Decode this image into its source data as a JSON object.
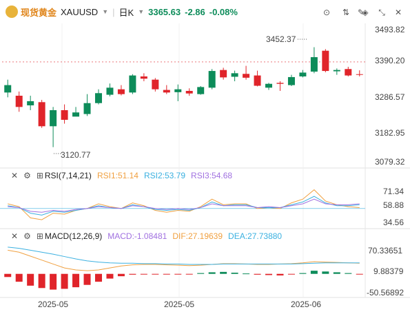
{
  "header": {
    "symbol_cn": "现货黄金",
    "symbol": "XAUUSD",
    "period": "日K",
    "price": "3365.63",
    "change": "-2.86",
    "change_pct": "-0.08%",
    "colors": {
      "up": "#0d8c5a",
      "down": "#e0242a",
      "text": "#222222"
    }
  },
  "toolbar_icons": [
    "compare-icon",
    "sort-icon",
    "draw-icon",
    "fill-icon",
    "collapse-icon",
    "close-icon"
  ],
  "price_axis": {
    "labels": [
      "3493.82",
      "3390.20",
      "3286.57",
      "3182.95",
      "3079.32"
    ],
    "current_label": "3390.20"
  },
  "annotations": {
    "high": "3452.37",
    "low": "3120.77"
  },
  "rsi": {
    "title": "RSI(7,14,21)",
    "rsi1": "RSI1:51.14",
    "rsi2": "RSI2:53.79",
    "rsi3": "RSI3:54.68",
    "axis": [
      "71.34",
      "58.88",
      "34.56"
    ]
  },
  "macd": {
    "title": "MACD(12,26,9)",
    "macd": "MACD:-1.08481",
    "dif": "DIF:27.19639",
    "dea": "DEA:27.73880",
    "axis": [
      "70.33651",
      "9.88379",
      "-50.56892"
    ]
  },
  "date_axis": [
    "2025-05",
    "2025-05",
    "2025-06"
  ],
  "chart_data": {
    "type": "candlestick",
    "candles": [
      {
        "o": 3295,
        "c": 3318,
        "h": 3335,
        "l": 3280
      },
      {
        "o": 3285,
        "c": 3250,
        "h": 3298,
        "l": 3235
      },
      {
        "o": 3255,
        "c": 3268,
        "h": 3285,
        "l": 3240
      },
      {
        "o": 3265,
        "c": 3190,
        "h": 3272,
        "l": 3185
      },
      {
        "o": 3190,
        "c": 3240,
        "h": 3250,
        "l": 3125
      },
      {
        "o": 3240,
        "c": 3210,
        "h": 3258,
        "l": 3198
      },
      {
        "o": 3220,
        "c": 3233,
        "h": 3250,
        "l": 3222
      },
      {
        "o": 3228,
        "c": 3262,
        "h": 3290,
        "l": 3222
      },
      {
        "o": 3262,
        "c": 3293,
        "h": 3305,
        "l": 3258
      },
      {
        "o": 3288,
        "c": 3310,
        "h": 3323,
        "l": 3283
      },
      {
        "o": 3305,
        "c": 3290,
        "h": 3318,
        "l": 3286
      },
      {
        "o": 3295,
        "c": 3348,
        "h": 3352,
        "l": 3290
      },
      {
        "o": 3345,
        "c": 3338,
        "h": 3355,
        "l": 3330
      },
      {
        "o": 3335,
        "c": 3305,
        "h": 3340,
        "l": 3298
      },
      {
        "o": 3303,
        "c": 3295,
        "h": 3318,
        "l": 3290
      },
      {
        "o": 3296,
        "c": 3305,
        "h": 3320,
        "l": 3268
      },
      {
        "o": 3300,
        "c": 3292,
        "h": 3308,
        "l": 3285
      },
      {
        "o": 3290,
        "c": 3312,
        "h": 3315,
        "l": 3288
      },
      {
        "o": 3310,
        "c": 3362,
        "h": 3368,
        "l": 3305
      },
      {
        "o": 3365,
        "c": 3342,
        "h": 3372,
        "l": 3335
      },
      {
        "o": 3344,
        "c": 3355,
        "h": 3363,
        "l": 3330
      },
      {
        "o": 3353,
        "c": 3341,
        "h": 3378,
        "l": 3335
      },
      {
        "o": 3348,
        "c": 3316,
        "h": 3363,
        "l": 3314
      },
      {
        "o": 3310,
        "c": 3322,
        "h": 3325,
        "l": 3303
      },
      {
        "o": 3325,
        "c": 3322,
        "h": 3330,
        "l": 3300
      },
      {
        "o": 3318,
        "c": 3343,
        "h": 3350,
        "l": 3315
      },
      {
        "o": 3345,
        "c": 3357,
        "h": 3365,
        "l": 3342
      },
      {
        "o": 3360,
        "c": 3405,
        "h": 3436,
        "l": 3355
      },
      {
        "o": 3425,
        "c": 3362,
        "h": 3430,
        "l": 3358
      },
      {
        "o": 3361,
        "c": 3365,
        "h": 3370,
        "l": 3350
      },
      {
        "o": 3368,
        "c": 3348,
        "h": 3375,
        "l": 3345
      },
      {
        "o": 3352,
        "c": 3350,
        "h": 3364,
        "l": 3345
      }
    ],
    "ylim": [
      3060,
      3510
    ],
    "rsi_series": [
      {
        "name": "RSI1",
        "color": "#f0a040",
        "values": [
          55,
          52,
          40,
          38,
          45,
          44,
          48,
          50,
          55,
          52,
          50,
          56,
          53,
          48,
          46,
          48,
          47,
          52,
          60,
          54,
          55,
          55,
          50,
          51,
          50,
          56,
          60,
          70,
          58,
          54,
          52,
          51
        ]
      },
      {
        "name": "RSI2",
        "color": "#3ab0e0",
        "values": [
          53,
          51,
          45,
          43,
          47,
          46,
          48,
          50,
          53,
          51,
          50,
          54,
          52,
          49,
          48,
          49,
          48,
          51,
          57,
          53,
          54,
          54,
          51,
          51,
          51,
          54,
          57,
          63,
          56,
          53,
          53,
          54
        ]
      },
      {
        "name": "RSI3",
        "color": "#a070e0",
        "values": [
          52,
          51,
          47,
          46,
          48,
          47,
          49,
          50,
          52,
          51,
          50,
          53,
          52,
          50,
          49,
          50,
          49,
          51,
          55,
          53,
          53,
          53,
          51,
          52,
          51,
          53,
          55,
          60,
          55,
          54,
          54,
          55
        ]
      }
    ],
    "rsi_ylim": [
      30,
      80
    ],
    "macd_hist": [
      -8,
      -20,
      -30,
      -36,
      -40,
      -38,
      -34,
      -28,
      -20,
      -12,
      -6,
      -2,
      -1,
      -1,
      -1,
      -1,
      -1,
      2,
      4,
      5,
      3,
      1,
      -2,
      -3,
      -4,
      -1,
      2,
      8,
      6,
      4,
      2,
      -1
    ],
    "macd_dif": [
      60,
      55,
      45,
      35,
      25,
      15,
      10,
      8,
      10,
      15,
      20,
      23,
      24,
      24,
      23,
      22,
      21,
      22,
      24,
      26,
      26,
      25,
      24,
      24,
      25,
      26,
      28,
      31,
      30,
      29,
      28,
      27
    ],
    "macd_dea": [
      68,
      65,
      60,
      55,
      50,
      44,
      38,
      33,
      30,
      28,
      27,
      27,
      26,
      26,
      25,
      25,
      24,
      24,
      24,
      25,
      25,
      25,
      25,
      25,
      25,
      25,
      26,
      27,
      28,
      28,
      28,
      28
    ],
    "macd_ylim": [
      -60,
      80
    ]
  }
}
